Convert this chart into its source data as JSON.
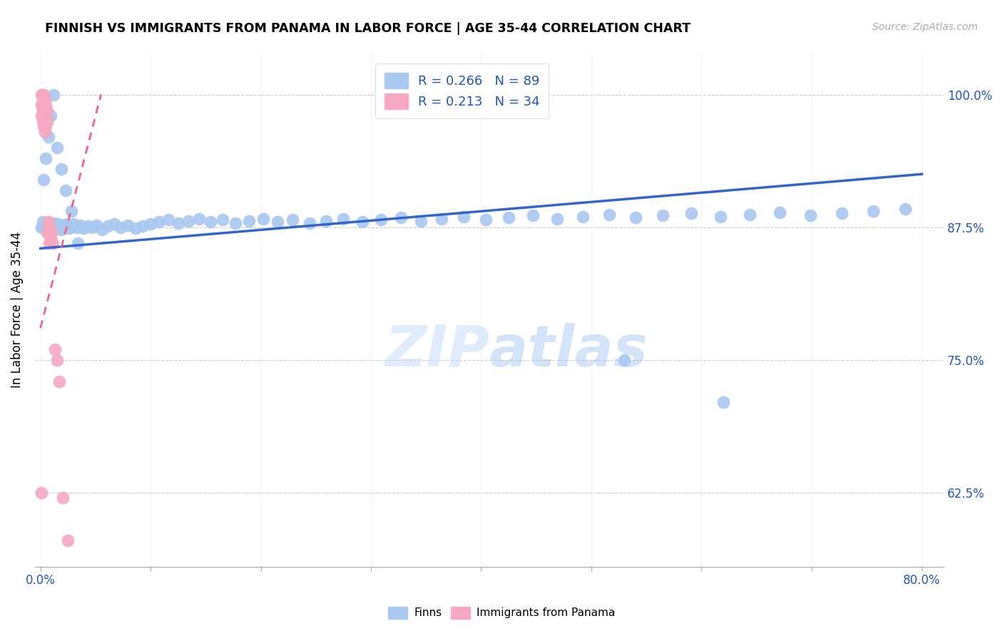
{
  "title": "FINNISH VS IMMIGRANTS FROM PANAMA IN LABOR FORCE | AGE 35-44 CORRELATION CHART",
  "source": "Source: ZipAtlas.com",
  "ylabel": "In Labor Force | Age 35-44",
  "ytick_labels": [
    "62.5%",
    "75.0%",
    "87.5%",
    "100.0%"
  ],
  "ytick_values": [
    0.625,
    0.75,
    0.875,
    1.0
  ],
  "xlim": [
    -0.005,
    0.82
  ],
  "ylim": [
    0.555,
    1.04
  ],
  "R_finns": 0.266,
  "N_finns": 89,
  "R_panama": 0.213,
  "N_panama": 34,
  "color_finns": "#A8C8F0",
  "color_panama": "#F5A8C0",
  "trend_color_finns": "#3366CC",
  "trend_color_panama": "#EE6688",
  "legend_label_finns": "Finns",
  "legend_label_panama": "Immigrants from Panama",
  "finns_x": [
    0.001,
    0.002,
    0.003,
    0.004,
    0.005,
    0.006,
    0.007,
    0.008,
    0.009,
    0.01,
    0.011,
    0.012,
    0.013,
    0.014,
    0.015,
    0.016,
    0.017,
    0.018,
    0.019,
    0.02,
    0.021,
    0.022,
    0.024,
    0.026,
    0.028,
    0.03,
    0.033,
    0.036,
    0.039,
    0.043,
    0.047,
    0.051,
    0.056,
    0.061,
    0.067,
    0.073,
    0.079,
    0.086,
    0.093,
    0.1,
    0.108,
    0.116,
    0.125,
    0.134,
    0.144,
    0.154,
    0.165,
    0.177,
    0.189,
    0.202,
    0.215,
    0.229,
    0.244,
    0.259,
    0.275,
    0.292,
    0.309,
    0.327,
    0.345,
    0.364,
    0.384,
    0.404,
    0.425,
    0.447,
    0.469,
    0.492,
    0.516,
    0.54,
    0.565,
    0.591,
    0.617,
    0.644,
    0.671,
    0.699,
    0.727,
    0.756,
    0.785,
    0.53,
    0.62,
    0.003,
    0.005,
    0.007,
    0.009,
    0.012,
    0.015,
    0.019,
    0.023,
    0.028,
    0.034
  ],
  "finns_y": [
    0.875,
    0.88,
    0.875,
    0.878,
    0.875,
    0.876,
    0.874,
    0.879,
    0.873,
    0.876,
    0.877,
    0.875,
    0.879,
    0.876,
    0.874,
    0.878,
    0.875,
    0.876,
    0.873,
    0.877,
    0.875,
    0.876,
    0.878,
    0.874,
    0.876,
    0.878,
    0.875,
    0.877,
    0.874,
    0.876,
    0.875,
    0.877,
    0.873,
    0.876,
    0.878,
    0.875,
    0.877,
    0.874,
    0.876,
    0.878,
    0.88,
    0.882,
    0.879,
    0.881,
    0.883,
    0.88,
    0.882,
    0.879,
    0.881,
    0.883,
    0.88,
    0.882,
    0.879,
    0.881,
    0.883,
    0.88,
    0.882,
    0.884,
    0.881,
    0.883,
    0.885,
    0.882,
    0.884,
    0.886,
    0.883,
    0.885,
    0.887,
    0.884,
    0.886,
    0.888,
    0.885,
    0.887,
    0.889,
    0.886,
    0.888,
    0.89,
    0.892,
    0.75,
    0.71,
    0.92,
    0.94,
    0.96,
    0.98,
    1.0,
    0.95,
    0.93,
    0.91,
    0.89,
    0.86
  ],
  "panama_x": [
    0.001,
    0.001,
    0.001,
    0.002,
    0.002,
    0.002,
    0.002,
    0.003,
    0.003,
    0.003,
    0.003,
    0.004,
    0.004,
    0.004,
    0.004,
    0.005,
    0.005,
    0.005,
    0.006,
    0.006,
    0.006,
    0.007,
    0.007,
    0.008,
    0.008,
    0.009,
    0.01,
    0.011,
    0.013,
    0.015,
    0.017,
    0.02,
    0.025,
    0.001
  ],
  "panama_y": [
    1.0,
    0.99,
    0.98,
    1.0,
    0.995,
    0.985,
    0.975,
    1.0,
    0.99,
    0.98,
    0.97,
    0.995,
    0.985,
    0.975,
    0.965,
    0.99,
    0.98,
    0.97,
    0.985,
    0.975,
    0.87,
    0.88,
    0.87,
    0.875,
    0.86,
    0.865,
    0.87,
    0.86,
    0.76,
    0.75,
    0.73,
    0.62,
    0.58,
    0.625
  ]
}
